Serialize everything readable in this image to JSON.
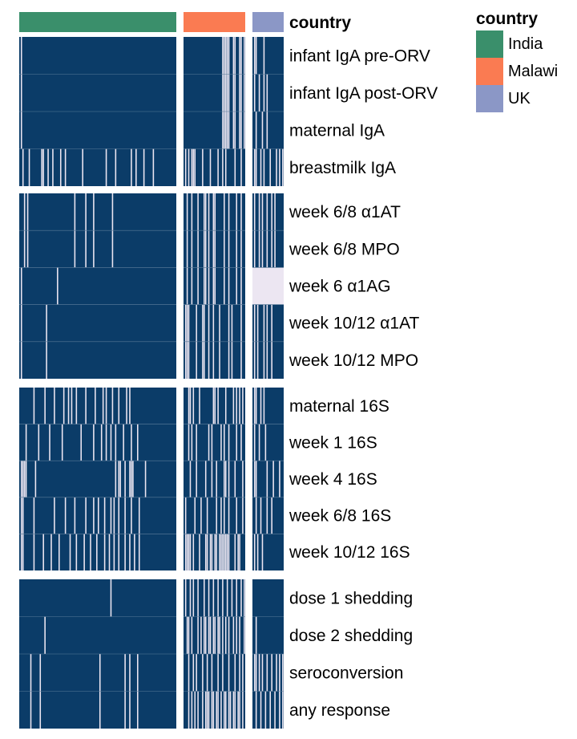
{
  "chart_data": {
    "type": "heatmap",
    "title": "",
    "annotation_label": "country",
    "legend": {
      "title": "country",
      "position": "top-right",
      "items": [
        {
          "label": "India",
          "color": "#3A8F6B"
        },
        {
          "label": "Malawi",
          "color": "#FA7B52"
        },
        {
          "label": "UK",
          "color": "#8B97C6"
        }
      ]
    },
    "cell_colors": {
      "present": "#0B3C68",
      "missing": "#ECE6F2",
      "divider": "#5A7A98"
    },
    "column_groups": [
      {
        "name": "India",
        "color": "#3A8F6B",
        "n_columns": 100
      },
      {
        "name": "Malawi",
        "color": "#FA7B52",
        "n_columns": 40
      },
      {
        "name": "UK",
        "color": "#8B97C6",
        "n_columns": 20
      }
    ],
    "row_groups": [
      {
        "rows": [
          {
            "label": "infant IgA pre-ORV",
            "missing": [
              [
                1
              ],
              [
                25,
                26,
                27,
                28,
                29,
                32,
                33,
                36,
                37,
                39
              ],
              [
                1,
                2,
                7
              ]
            ]
          },
          {
            "label": "infant IgA post-ORV",
            "missing": [
              [
                1
              ],
              [
                25,
                26,
                27,
                28,
                29,
                32,
                33,
                36,
                37,
                39
              ],
              [
                1,
                4,
                7,
                9
              ]
            ]
          },
          {
            "label": "maternal IgA",
            "missing": [
              [
                1
              ],
              [
                25,
                26,
                27,
                28,
                29,
                32,
                33,
                36,
                37,
                39
              ],
              [
                2,
                6,
                9
              ]
            ]
          },
          {
            "label": "breastmilk IgA",
            "missing": [
              [
                2,
                6,
                14,
                15,
                18,
                21,
                26,
                29,
                40,
                55,
                61,
                71,
                74,
                79,
                85
              ],
              [
                1,
                3,
                5,
                6,
                7,
                12,
                17,
                22,
                25,
                27,
                33,
                37
              ],
              [
                1,
                2,
                5,
                7,
                11,
                15,
                17,
                19
              ]
            ]
          }
        ]
      },
      {
        "rows": [
          {
            "label": "week 6/8 α1AT",
            "missing": [
              [
                3,
                5,
                35,
                42,
                47,
                59
              ],
              [
                2,
                5,
                9,
                13,
                14,
                16,
                19,
                20,
                26,
                29,
                34,
                37
              ],
              [
                1,
                4,
                6,
                9,
                12,
                14
              ]
            ]
          },
          {
            "label": "week 6/8 MPO",
            "missing": [
              [
                3,
                5,
                35,
                42,
                47,
                59
              ],
              [
                2,
                5,
                9,
                13,
                14,
                16,
                19,
                20,
                26,
                29,
                34,
                37
              ],
              [
                1,
                4,
                6,
                9,
                12,
                14
              ]
            ]
          },
          {
            "label": "week 6 α1AG",
            "missing": [
              [
                1,
                24
              ],
              [
                2,
                5,
                9,
                13,
                14,
                16,
                19,
                20,
                26,
                29,
                34,
                37
              ],
              "all"
            ]
          },
          {
            "label": "week 10/12 α1AT",
            "missing": [
              [
                1,
                17
              ],
              [
                1,
                2,
                3,
                8,
                12,
                13,
                16,
                19,
                23,
                29,
                31,
                37
              ],
              [
                1,
                3,
                7,
                9,
                12
              ]
            ]
          },
          {
            "label": "week 10/12 MPO",
            "missing": [
              [
                1,
                17
              ],
              [
                1,
                2,
                3,
                8,
                12,
                13,
                16,
                19,
                23,
                29,
                31,
                37
              ],
              [
                1,
                3,
                7,
                9,
                12
              ]
            ]
          }
        ]
      },
      {
        "rows": [
          {
            "label": "maternal 16S",
            "missing": [
              [
                9,
                16,
                22,
                28,
                31,
                33,
                36,
                42,
                48,
                53,
                55,
                59,
                63,
                68,
                70
              ],
              [
                3,
                4,
                6,
                10,
                19,
                20,
                22,
                27,
                32,
                34,
                36,
                38
              ],
              [
                1,
                2,
                5,
                7
              ]
            ]
          },
          {
            "label": "week 1 16S",
            "missing": [
              [
                4,
                12,
                19,
                27,
                39,
                47,
                52,
                55,
                58,
                61,
                66,
                71,
                75
              ],
              [
                3,
                5,
                8,
                16,
                18,
                24,
                26,
                29,
                34,
                37
              ],
              [
                1,
                4,
                8
              ]
            ]
          },
          {
            "label": "week 4 16S",
            "missing": [
              [
                1,
                2,
                3,
                4,
                10,
                61,
                63,
                64,
                67,
                70,
                71,
                72,
                80
              ],
              [
                4,
                8,
                14,
                18,
                21,
                26,
                27,
                29,
                33,
                38
              ],
              [
                1,
                2,
                9,
                13,
                17
              ]
            ]
          },
          {
            "label": "week 6/8 16S",
            "missing": [
              [
                1,
                2,
                9,
                22,
                29,
                35,
                42,
                47,
                50,
                54,
                58,
                60,
                63,
                67,
                71,
                76
              ],
              [
                1,
                7,
                11,
                15,
                21,
                24,
                26,
                29,
                34,
                38
              ],
              [
                2,
                5,
                9,
                12
              ]
            ]
          },
          {
            "label": "week 10/12 16S",
            "missing": [
              [
                1,
                2,
                9,
                15,
                20,
                25,
                32,
                36,
                41,
                45,
                49,
                54,
                57,
                60,
                63,
                67,
                70,
                73,
                76
              ],
              [
                1,
                2,
                3,
                4,
                6,
                10,
                14,
                15,
                17,
                18,
                20,
                21,
                23,
                24,
                25,
                26,
                27,
                28,
                29,
                33,
                35,
                36
              ],
              [
                1,
                3,
                6
              ]
            ]
          }
        ]
      },
      {
        "rows": [
          {
            "label": "dose 1 shedding",
            "missing": [
              [
                58
              ],
              [
                1,
                4,
                6,
                9,
                13,
                16,
                19,
                22,
                25,
                28,
                31,
                34,
                37,
                39
              ],
              []
            ]
          },
          {
            "label": "dose 2 shedding",
            "missing": [
              [
                16
              ],
              [
                2,
                3,
                5,
                9,
                11,
                13,
                14,
                16,
                17,
                19,
                20,
                22,
                23,
                25,
                27,
                29,
                32,
                34,
                36,
                39
              ],
              [
                2
              ]
            ]
          },
          {
            "label": "seroconversion",
            "missing": [
              [
                7,
                13,
                51,
                67,
                70,
                75
              ],
              [
                3,
                6,
                8,
                12,
                15,
                18,
                22,
                25,
                29,
                33,
                36,
                38
              ],
              [
                1,
                2,
                4,
                6,
                9,
                12,
                15,
                17,
                19
              ]
            ]
          },
          {
            "label": "any response",
            "missing": [
              [
                7,
                13,
                51,
                67,
                70,
                75
              ],
              [
                3,
                5,
                7,
                9,
                12,
                14,
                15,
                16,
                18,
                19,
                21,
                22,
                24,
                26,
                27,
                29,
                30,
                32,
                33,
                35,
                36,
                38
              ],
              [
                2,
                5,
                8,
                11,
                14,
                17,
                19
              ]
            ]
          }
        ]
      }
    ]
  }
}
